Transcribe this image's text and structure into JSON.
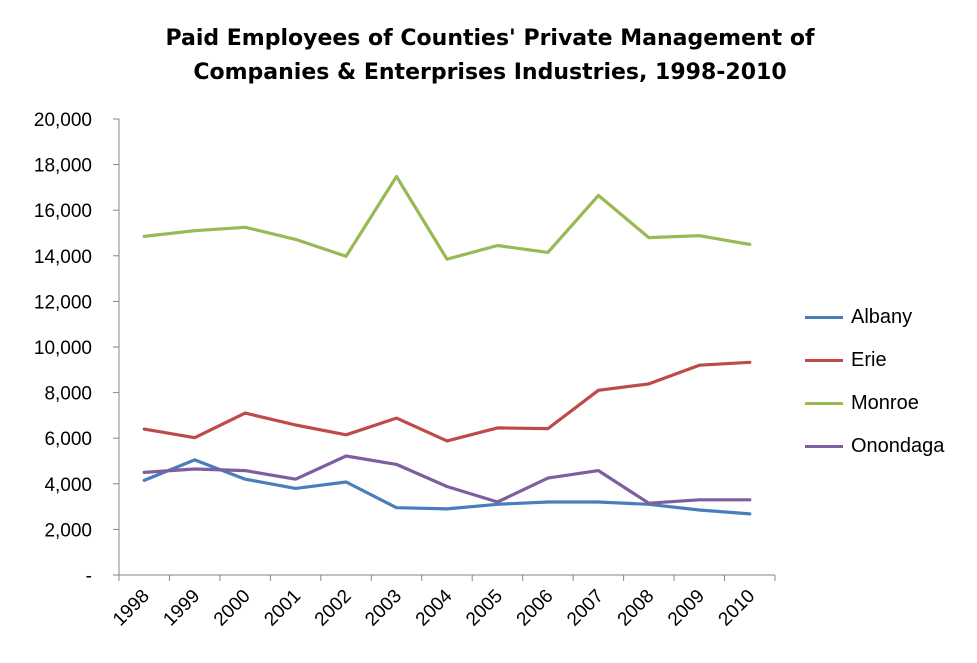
{
  "title_line1": "Paid Employees of Counties' Private Management of",
  "title_line2": "Companies & Enterprises Industries, 1998-2010",
  "chart_data": {
    "type": "line",
    "title": "Paid Employees of Counties' Private Management of Companies & Enterprises Industries, 1998-2010",
    "categories": [
      "1998",
      "1999",
      "2000",
      "2001",
      "2002",
      "2003",
      "2004",
      "2005",
      "2006",
      "2007",
      "2008",
      "2009",
      "2010"
    ],
    "ylim": [
      0,
      20000
    ],
    "yticks": [
      0,
      2000,
      4000,
      6000,
      8000,
      10000,
      12000,
      14000,
      16000,
      18000,
      20000
    ],
    "ytick_labels": [
      "-",
      "2,000",
      "4,000",
      "6,000",
      "8,000",
      "10,000",
      "12,000",
      "14,000",
      "16,000",
      "18,000",
      "20,000"
    ],
    "grid": false,
    "legend_position": "right",
    "series": [
      {
        "name": "Albany",
        "color": "#4a7ebb",
        "values": [
          4150,
          5050,
          4200,
          3800,
          4080,
          2950,
          2900,
          3100,
          3200,
          3200,
          3100,
          2850,
          2680
        ]
      },
      {
        "name": "Erie",
        "color": "#be4b48",
        "values": [
          6400,
          6020,
          7100,
          6580,
          6150,
          6880,
          5880,
          6450,
          6420,
          8100,
          8380,
          9200,
          9330
        ]
      },
      {
        "name": "Monroe",
        "color": "#98b954",
        "values": [
          14850,
          15100,
          15250,
          14720,
          13980,
          17480,
          13850,
          14450,
          14150,
          16650,
          14800,
          14880,
          14500
        ]
      },
      {
        "name": "Onondaga",
        "color": "#7d5fa0",
        "values": [
          4500,
          4650,
          4580,
          4200,
          5220,
          4850,
          3880,
          3200,
          4250,
          4580,
          3150,
          3300,
          3300
        ]
      }
    ]
  }
}
